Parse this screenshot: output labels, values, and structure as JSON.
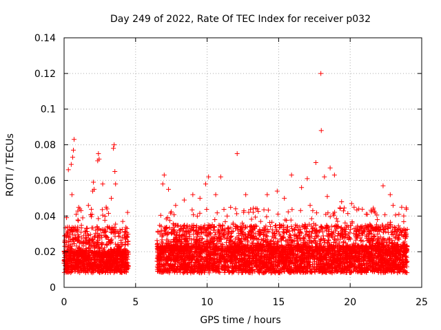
{
  "chart_data": {
    "type": "scatter",
    "title": "Day 249 of 2022, Rate Of TEC Index for receiver p032",
    "xlabel": "GPS time / hours",
    "ylabel": "ROTI / TECUs",
    "xlim": [
      0,
      25
    ],
    "ylim": [
      0,
      0.14
    ],
    "x_ticks": [
      "0",
      "5",
      "10",
      "15",
      "20",
      "25"
    ],
    "y_ticks": [
      "0",
      "0.02",
      "0.04",
      "0.06",
      "0.08",
      "0.1",
      "0.12",
      "0.14"
    ],
    "grid": true,
    "marker": "+",
    "color": "#ff0000",
    "data_gap_hours": [
      4.5,
      6.5
    ],
    "points": [
      {
        "x": 0.3,
        "y": 0.066
      },
      {
        "x": 0.5,
        "y": 0.069
      },
      {
        "x": 0.6,
        "y": 0.073
      },
      {
        "x": 0.65,
        "y": 0.077
      },
      {
        "x": 0.7,
        "y": 0.083
      },
      {
        "x": 0.55,
        "y": 0.052
      },
      {
        "x": 0.85,
        "y": 0.041
      },
      {
        "x": 1.1,
        "y": 0.044
      },
      {
        "x": 1.3,
        "y": 0.039
      },
      {
        "x": 1.7,
        "y": 0.046
      },
      {
        "x": 2.0,
        "y": 0.054
      },
      {
        "x": 2.05,
        "y": 0.059
      },
      {
        "x": 2.1,
        "y": 0.055
      },
      {
        "x": 2.35,
        "y": 0.071
      },
      {
        "x": 2.4,
        "y": 0.075
      },
      {
        "x": 2.45,
        "y": 0.072
      },
      {
        "x": 2.7,
        "y": 0.058
      },
      {
        "x": 3.0,
        "y": 0.044
      },
      {
        "x": 3.3,
        "y": 0.05
      },
      {
        "x": 3.45,
        "y": 0.078
      },
      {
        "x": 3.5,
        "y": 0.08
      },
      {
        "x": 3.55,
        "y": 0.065
      },
      {
        "x": 3.6,
        "y": 0.058
      },
      {
        "x": 4.1,
        "y": 0.037
      },
      {
        "x": 6.9,
        "y": 0.058
      },
      {
        "x": 7.0,
        "y": 0.063
      },
      {
        "x": 7.3,
        "y": 0.055
      },
      {
        "x": 7.8,
        "y": 0.046
      },
      {
        "x": 8.4,
        "y": 0.049
      },
      {
        "x": 9.0,
        "y": 0.052
      },
      {
        "x": 9.5,
        "y": 0.05
      },
      {
        "x": 9.9,
        "y": 0.058
      },
      {
        "x": 10.1,
        "y": 0.062
      },
      {
        "x": 10.6,
        "y": 0.052
      },
      {
        "x": 10.95,
        "y": 0.062
      },
      {
        "x": 11.4,
        "y": 0.04
      },
      {
        "x": 12.1,
        "y": 0.075
      },
      {
        "x": 12.7,
        "y": 0.052
      },
      {
        "x": 13.5,
        "y": 0.044
      },
      {
        "x": 14.2,
        "y": 0.052
      },
      {
        "x": 14.9,
        "y": 0.054
      },
      {
        "x": 15.4,
        "y": 0.05
      },
      {
        "x": 15.9,
        "y": 0.063
      },
      {
        "x": 16.6,
        "y": 0.056
      },
      {
        "x": 17.0,
        "y": 0.061
      },
      {
        "x": 17.2,
        "y": 0.046
      },
      {
        "x": 17.6,
        "y": 0.07
      },
      {
        "x": 17.95,
        "y": 0.12
      },
      {
        "x": 17.98,
        "y": 0.088
      },
      {
        "x": 18.2,
        "y": 0.062
      },
      {
        "x": 18.4,
        "y": 0.051
      },
      {
        "x": 18.6,
        "y": 0.067
      },
      {
        "x": 18.9,
        "y": 0.063
      },
      {
        "x": 19.4,
        "y": 0.048
      },
      {
        "x": 20.1,
        "y": 0.047
      },
      {
        "x": 20.6,
        "y": 0.044
      },
      {
        "x": 21.2,
        "y": 0.041
      },
      {
        "x": 21.9,
        "y": 0.038
      },
      {
        "x": 22.3,
        "y": 0.057
      },
      {
        "x": 22.8,
        "y": 0.052
      },
      {
        "x": 23.0,
        "y": 0.046
      },
      {
        "x": 23.6,
        "y": 0.045
      }
    ],
    "band_profile": [
      {
        "from": 0.0,
        "to": 4.5,
        "low": 0.004,
        "base": 0.018,
        "high": 0.045
      },
      {
        "from": 6.5,
        "to": 24.0,
        "low": 0.003,
        "base": 0.02,
        "high": 0.045
      }
    ]
  }
}
